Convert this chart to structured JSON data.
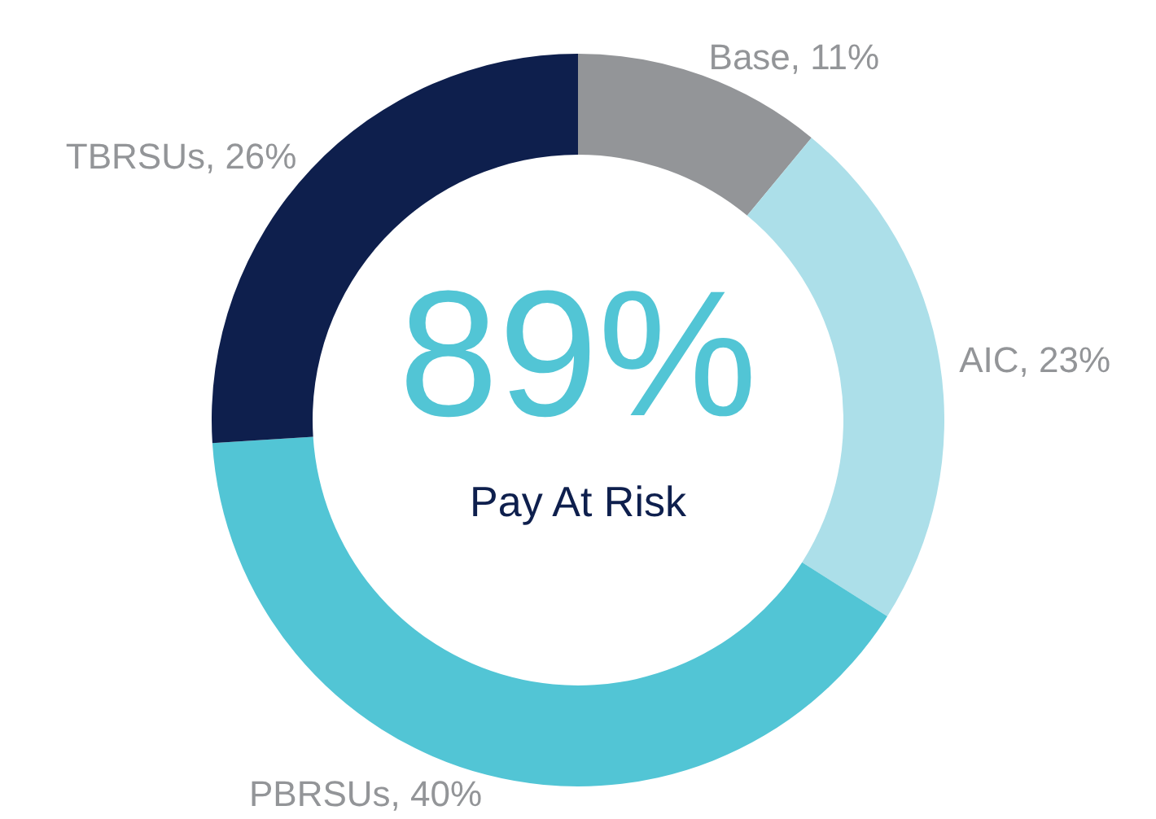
{
  "chart_data": {
    "type": "donut",
    "categories": [
      "Base",
      "AIC",
      "PBRSUs",
      "TBRSUs"
    ],
    "values": [
      11,
      23,
      40,
      26
    ],
    "colors": [
      "#939598",
      "#acdfe9",
      "#52c5d5",
      "#0e1f4d"
    ],
    "value_labels": [
      "11%",
      "23%",
      "40%",
      "26%"
    ],
    "annotations": [
      "89%",
      "Pay At Risk"
    ]
  }
}
